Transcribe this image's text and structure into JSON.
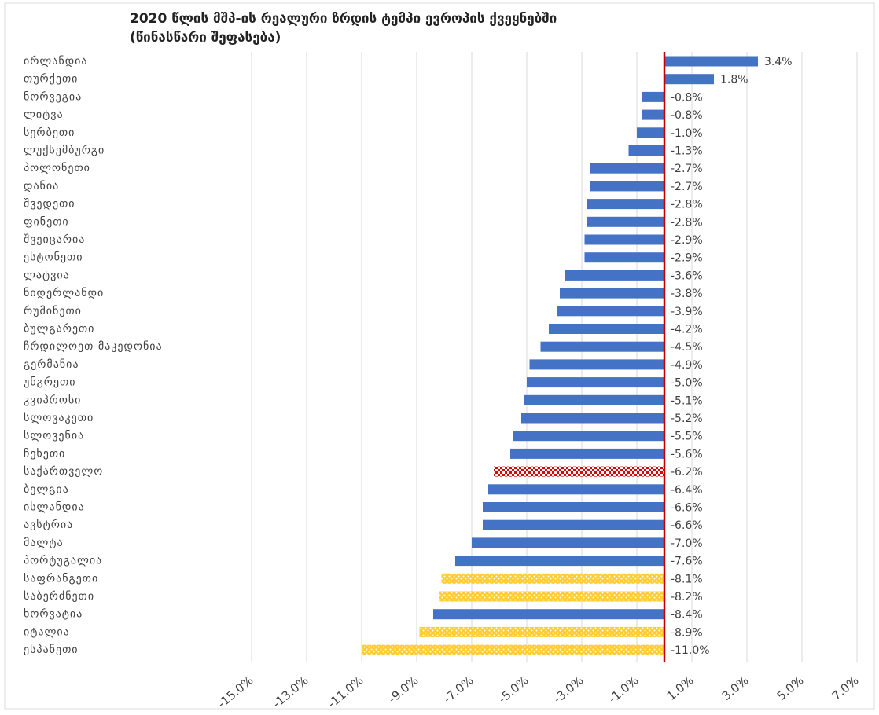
{
  "chart_data": {
    "type": "barh",
    "title": "2020 წლის მშპ-ის რეალური ზრდის ტემპი ევროპის ქვეყნებში",
    "subtitle": "(წინასწარი შეფასება)",
    "categories": [
      "ირლანდია",
      "თურქეთი",
      "ნორვეგია",
      "ლიტვა",
      "სერბეთი",
      "ლუქსემბურგი",
      "პოლონეთი",
      "დანია",
      "შვედეთი",
      "ფინეთი",
      "შვეიცარია",
      "ესტონეთი",
      "ლატვია",
      "ნიდერლანდი",
      "რუმინეთი",
      "ბულგარეთი",
      "ჩრდილოეთ მაკედონია",
      "გერმანია",
      "უნგრეთი",
      "კვიპროსი",
      "სლოვაკეთი",
      "სლოვენია",
      "ჩეხეთი",
      "საქართველო",
      "ბელგია",
      "ისლანდია",
      "ავსტრია",
      "მალტა",
      "პორტუგალია",
      "საფრანგეთი",
      "საბერძნეთი",
      "ხორვატია",
      "იტალია",
      "ესპანეთი"
    ],
    "values": [
      3.4,
      1.8,
      -0.8,
      -0.8,
      -1.0,
      -1.3,
      -2.7,
      -2.7,
      -2.8,
      -2.8,
      -2.9,
      -2.9,
      -3.6,
      -3.8,
      -3.9,
      -4.2,
      -4.5,
      -4.9,
      -5.0,
      -5.1,
      -5.2,
      -5.5,
      -5.6,
      -6.2,
      -6.4,
      -6.6,
      -6.6,
      -7.0,
      -7.6,
      -8.1,
      -8.2,
      -8.4,
      -8.9,
      -11.0
    ],
    "value_labels": [
      "3.4%",
      "1.8%",
      "-0.8%",
      "-0.8%",
      "-1.0%",
      "-1.3%",
      "-2.7%",
      "-2.7%",
      "-2.8%",
      "-2.8%",
      "-2.9%",
      "-2.9%",
      "-3.6%",
      "-3.8%",
      "-3.9%",
      "-4.2%",
      "-4.5%",
      "-4.9%",
      "-5.0%",
      "-5.1%",
      "-5.2%",
      "-5.5%",
      "-5.6%",
      "-6.2%",
      "-6.4%",
      "-6.6%",
      "-6.6%",
      "-7.0%",
      "-7.6%",
      "-8.1%",
      "-8.2%",
      "-8.4%",
      "-8.9%",
      "-11.0%"
    ],
    "colors": [
      "#4472c4",
      "#4472c4",
      "#4472c4",
      "#4472c4",
      "#4472c4",
      "#4472c4",
      "#4472c4",
      "#4472c4",
      "#4472c4",
      "#4472c4",
      "#4472c4",
      "#4472c4",
      "#4472c4",
      "#4472c4",
      "#4472c4",
      "#4472c4",
      "#4472c4",
      "#4472c4",
      "#4472c4",
      "#4472c4",
      "#4472c4",
      "#4472c4",
      "#4472c4",
      "#e00000",
      "#4472c4",
      "#4472c4",
      "#4472c4",
      "#4472c4",
      "#4472c4",
      "#ffc000",
      "#ffc000",
      "#4472c4",
      "#ffc000",
      "#ffc000"
    ],
    "fill_styles": [
      "solid",
      "solid",
      "solid",
      "solid",
      "solid",
      "solid",
      "solid",
      "solid",
      "solid",
      "solid",
      "solid",
      "solid",
      "solid",
      "solid",
      "solid",
      "solid",
      "solid",
      "solid",
      "solid",
      "solid",
      "solid",
      "solid",
      "solid",
      "checkered",
      "solid",
      "solid",
      "solid",
      "solid",
      "solid",
      "dotted",
      "dotted",
      "solid",
      "dotted",
      "dotted"
    ],
    "xlim": [
      -15,
      7
    ],
    "xticks": [
      {
        "value": -15,
        "label": "-15.0%"
      },
      {
        "value": -13,
        "label": "-13.0%"
      },
      {
        "value": -11,
        "label": "-11.0%"
      },
      {
        "value": -9,
        "label": "-9.0%"
      },
      {
        "value": -7,
        "label": "-7.0%"
      },
      {
        "value": -5,
        "label": "-5.0%"
      },
      {
        "value": -3,
        "label": "-3.0%"
      },
      {
        "value": -1,
        "label": "-1.0%"
      },
      {
        "value": 1,
        "label": "1.0%"
      },
      {
        "value": 3,
        "label": "3.0%"
      },
      {
        "value": 5,
        "label": "5.0%"
      },
      {
        "value": 7,
        "label": "7.0%"
      }
    ],
    "grid": true,
    "zero_line_color": "#c00000"
  }
}
